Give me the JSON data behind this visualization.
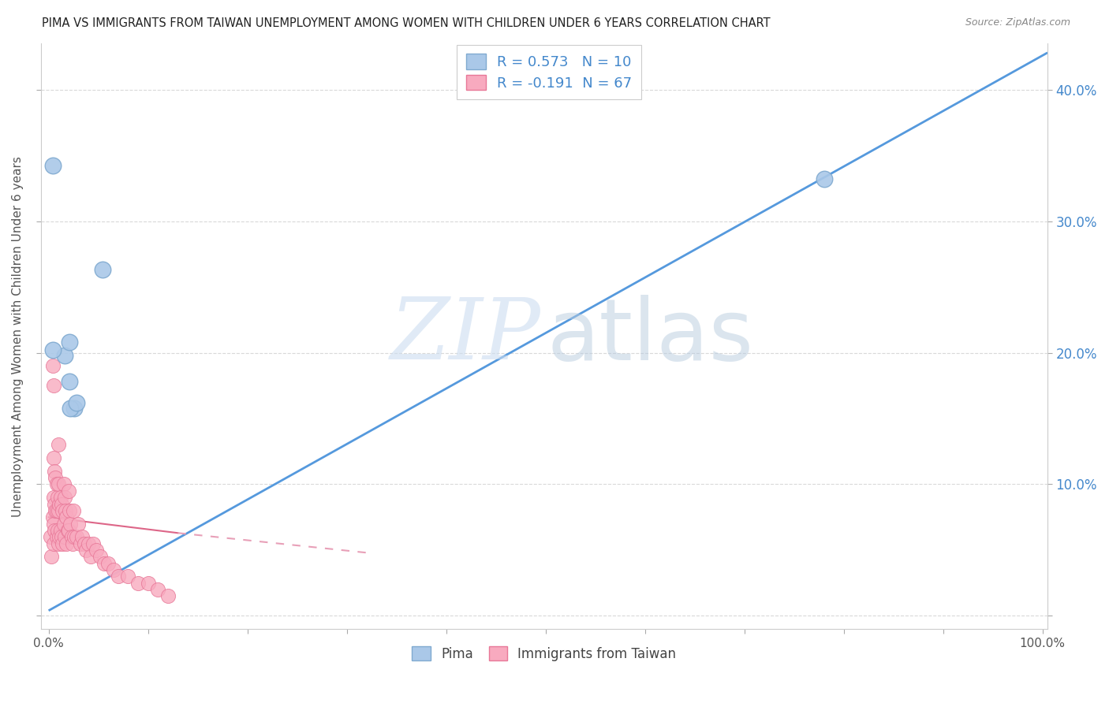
{
  "title": "PIMA VS IMMIGRANTS FROM TAIWAN UNEMPLOYMENT AMONG WOMEN WITH CHILDREN UNDER 6 YEARS CORRELATION CHART",
  "source": "Source: ZipAtlas.com",
  "ylabel": "Unemployment Among Women with Children Under 6 years",
  "xlim": [
    -0.008,
    1.005
  ],
  "ylim": [
    -0.01,
    0.435
  ],
  "xticks": [
    0.0,
    0.1,
    0.2,
    0.3,
    0.4,
    0.5,
    0.6,
    0.7,
    0.8,
    0.9,
    1.0
  ],
  "xticklabels": [
    "0.0%",
    "",
    "",
    "",
    "",
    "",
    "",
    "",
    "",
    "",
    "100.0%"
  ],
  "yticks": [
    0.0,
    0.1,
    0.2,
    0.3,
    0.4
  ],
  "yticklabels_right": [
    "",
    "10.0%",
    "20.0%",
    "30.0%",
    "40.0%"
  ],
  "pima_color": "#aac8e8",
  "pima_edge_color": "#80aad0",
  "taiwan_color": "#f8aabf",
  "taiwan_edge_color": "#e87898",
  "pima_line_color": "#5599dd",
  "taiwan_line_solid_color": "#dd6688",
  "taiwan_line_dash_color": "#e8a0b8",
  "legend_pima_R": "R = 0.573",
  "legend_pima_N": "N = 10",
  "legend_taiwan_R": "R = -0.191",
  "legend_taiwan_N": "N = 67",
  "legend_label_pima": "Pima",
  "legend_label_taiwan": "Immigrants from Taiwan",
  "pima_x": [
    0.004,
    0.016,
    0.054,
    0.021,
    0.026,
    0.022,
    0.021,
    0.78,
    0.004,
    0.028
  ],
  "pima_y": [
    0.342,
    0.198,
    0.263,
    0.178,
    0.158,
    0.158,
    0.208,
    0.332,
    0.202,
    0.162
  ],
  "taiwan_x": [
    0.002,
    0.003,
    0.004,
    0.004,
    0.005,
    0.005,
    0.005,
    0.005,
    0.005,
    0.006,
    0.006,
    0.006,
    0.007,
    0.007,
    0.008,
    0.008,
    0.008,
    0.009,
    0.009,
    0.01,
    0.01,
    0.01,
    0.01,
    0.011,
    0.011,
    0.012,
    0.012,
    0.013,
    0.013,
    0.014,
    0.014,
    0.015,
    0.015,
    0.016,
    0.016,
    0.017,
    0.018,
    0.018,
    0.019,
    0.02,
    0.02,
    0.021,
    0.022,
    0.023,
    0.024,
    0.025,
    0.026,
    0.028,
    0.03,
    0.032,
    0.034,
    0.036,
    0.038,
    0.04,
    0.042,
    0.045,
    0.048,
    0.052,
    0.056,
    0.06,
    0.065,
    0.07,
    0.08,
    0.09,
    0.1,
    0.11,
    0.12
  ],
  "taiwan_y": [
    0.06,
    0.045,
    0.19,
    0.075,
    0.175,
    0.12,
    0.09,
    0.07,
    0.055,
    0.11,
    0.085,
    0.065,
    0.105,
    0.08,
    0.1,
    0.08,
    0.06,
    0.09,
    0.065,
    0.13,
    0.1,
    0.08,
    0.055,
    0.085,
    0.06,
    0.09,
    0.065,
    0.085,
    0.06,
    0.08,
    0.055,
    0.1,
    0.07,
    0.09,
    0.06,
    0.08,
    0.075,
    0.055,
    0.065,
    0.095,
    0.065,
    0.08,
    0.07,
    0.06,
    0.055,
    0.08,
    0.06,
    0.06,
    0.07,
    0.055,
    0.06,
    0.055,
    0.05,
    0.055,
    0.045,
    0.055,
    0.05,
    0.045,
    0.04,
    0.04,
    0.035,
    0.03,
    0.03,
    0.025,
    0.025,
    0.02,
    0.015
  ],
  "background_color": "#ffffff",
  "grid_color": "#d0d0d0",
  "title_color": "#222222",
  "right_tick_color": "#4488cc",
  "watermark_zip_color": "#ccddf0",
  "watermark_atlas_color": "#b8ccdf"
}
